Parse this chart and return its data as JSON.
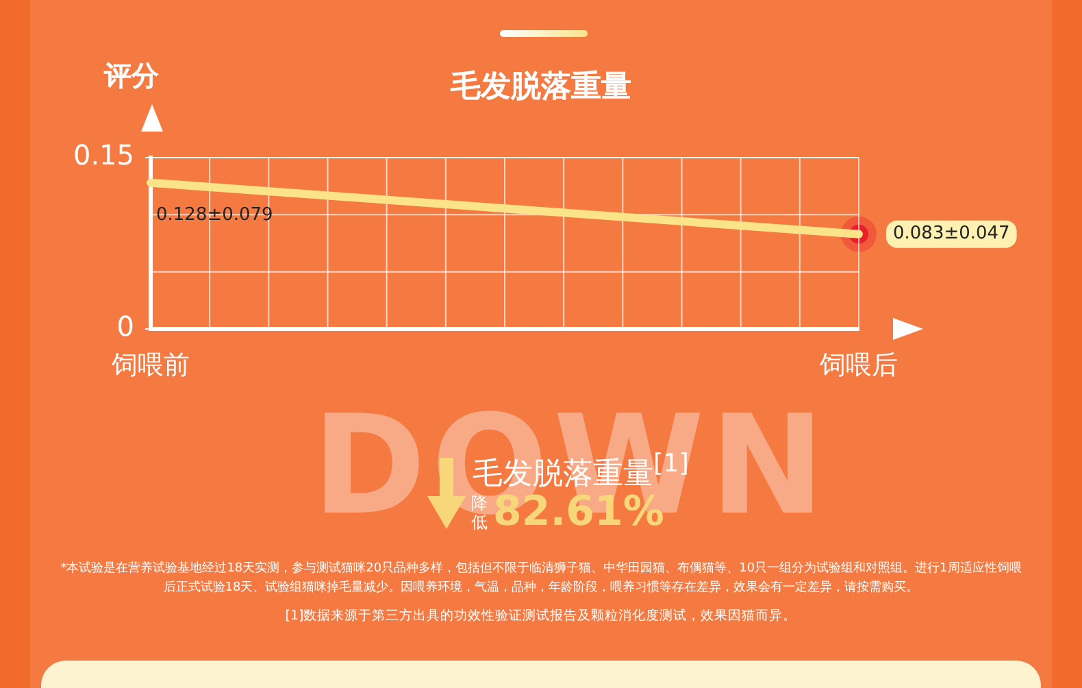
{
  "chart_data": {
    "type": "line",
    "title": "毛发脱落重量",
    "ylabel": "评分",
    "categories": [
      "饲喂前",
      "饲喂后"
    ],
    "series": [
      {
        "color": "#fbe38a",
        "values": [
          0.128,
          0.083
        ],
        "value_labels": [
          "0.128±0.079",
          "0.083±0.047"
        ]
      }
    ],
    "ylim": [
      0,
      0.15
    ],
    "yticks": [
      0,
      0.15
    ],
    "grid": true,
    "marker": "circle",
    "legend": false,
    "annotations": [
      "DOWN",
      "毛发脱落重量$^{[1]}$",
      "降低",
      "82.61%",
      "*本试验是在营养试验基地经过18天实测，参与测试猫咪20只品种多样，包括但不限于临清狮子猫、中华田园猫、布偶猫等、10只一组分为试验组和对照组。进行1周适应性饲喂后正式试验18天、试验组猫咪掉毛量减少。因喂养环境，气温，品种，年龄阶段，喂养习惯等存在差异，效果会有一定差异，请按需购买。",
      "[1]数据来源于第三方出具的功效性验证测试报告及颗粒消化度测试，效果因猫而异。"
    ]
  }
}
